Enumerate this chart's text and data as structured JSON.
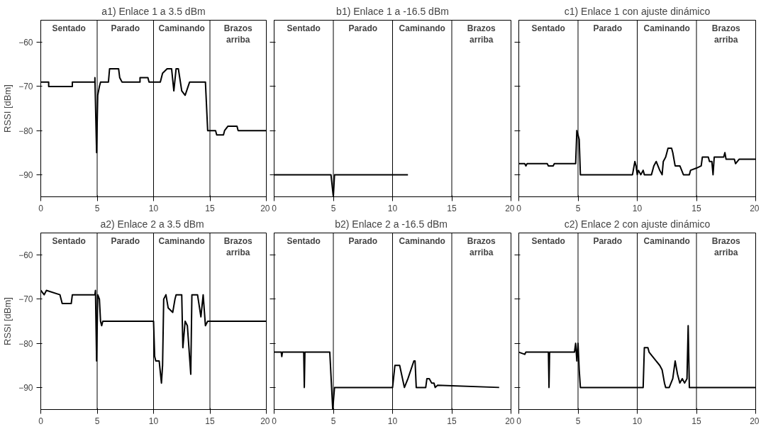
{
  "chart_data": [
    {
      "type": "line",
      "annotations": [
        "Sentado",
        "Parado",
        "Caminando",
        "Brazos arriba"
      ],
      "title": "a1) Enlace 1 a 3.5 dBm",
      "ylabel": "RSSI [dBm]",
      "xlim": [
        0,
        20
      ],
      "ylim": [
        -95,
        -55
      ],
      "xticks": [
        0,
        5,
        10,
        15,
        20
      ],
      "yticks": [
        -90,
        -80,
        -70,
        -60
      ],
      "grid": false,
      "ref_lines": [
        {
          "axis": "x",
          "value": 5,
          "color": "#000000"
        },
        {
          "axis": "x",
          "value": 10,
          "color": "#000000"
        },
        {
          "axis": "x",
          "value": 15,
          "color": "#000000"
        }
      ],
      "series": [
        {
          "color": "#000000",
          "x": [
            0,
            0.7,
            0.7,
            2.8,
            2.8,
            4.8,
            4.8,
            4.95,
            5.05,
            5.2,
            5.3,
            6.0,
            6.1,
            6.9,
            7.0,
            7.2,
            8.8,
            8.8,
            9.5,
            9.6,
            10.0,
            10.6,
            10.8,
            11.2,
            11.6,
            11.8,
            12.0,
            12.2,
            12.5,
            12.8,
            13.2,
            14.6,
            14.8,
            15.5,
            15.6,
            16.2,
            16.3,
            16.6,
            17.4,
            17.5,
            20
          ],
          "values": [
            -69,
            -69,
            -70,
            -70,
            -69,
            -69,
            -68,
            -85,
            -72,
            -70,
            -69,
            -69,
            -66,
            -66,
            -68,
            -69,
            -69,
            -68,
            -68,
            -69,
            -69,
            -69,
            -67,
            -66,
            -66,
            -71,
            -66,
            -66,
            -71,
            -72,
            -69,
            -69,
            -80,
            -80,
            -81,
            -81,
            -80,
            -79,
            -79,
            -80,
            -80
          ]
        }
      ]
    },
    {
      "type": "line",
      "annotations": [
        "Sentado",
        "Parado",
        "Caminando",
        "Brazos arriba"
      ],
      "title": "b1) Enlace 1 a -16.5 dBm",
      "xlim": [
        0,
        20
      ],
      "ylim": [
        -95,
        -55
      ],
      "xticks": [
        0,
        5,
        10,
        15,
        20
      ],
      "yticks": [
        -90,
        -80,
        -70,
        -60
      ],
      "grid": false,
      "tick_labels": "x",
      "ref_lines": [
        {
          "axis": "x",
          "value": 5,
          "color": "#000000"
        },
        {
          "axis": "x",
          "value": 10,
          "color": "#000000"
        },
        {
          "axis": "x",
          "value": 15,
          "color": "#000000"
        }
      ],
      "series": [
        {
          "color": "#000000",
          "x": [
            0,
            4.8,
            5.0,
            5.1,
            11.3
          ],
          "values": [
            -90,
            -90,
            -95,
            -90,
            -90
          ]
        }
      ]
    },
    {
      "type": "line",
      "annotations": [
        "Sentado",
        "Parado",
        "Caminando",
        "Brazos arriba"
      ],
      "title": "c1) Enlace 1 con ajuste dinámico",
      "xlim": [
        0,
        20
      ],
      "ylim": [
        -95,
        -55
      ],
      "xticks": [
        0,
        5,
        10,
        15,
        20
      ],
      "yticks": [
        -90,
        -80,
        -70,
        -60
      ],
      "grid": false,
      "tick_labels": "x",
      "ref_lines": [
        {
          "axis": "x",
          "value": 5,
          "color": "#000000"
        },
        {
          "axis": "x",
          "value": 10,
          "color": "#000000"
        },
        {
          "axis": "x",
          "value": 15,
          "color": "#000000"
        }
      ],
      "series": [
        {
          "color": "#000000",
          "x": [
            0,
            0.5,
            0.6,
            0.7,
            2.4,
            2.5,
            2.9,
            3.0,
            4.8,
            4.9,
            5.1,
            5.2,
            9.6,
            9.8,
            9.9,
            10.0,
            10.1,
            10.3,
            10.5,
            10.6,
            11.2,
            11.4,
            11.6,
            11.9,
            12.1,
            12.2,
            12.4,
            12.6,
            12.9,
            13.0,
            13.2,
            13.6,
            13.9,
            14.4,
            14.5,
            15.0,
            15.4,
            15.5,
            16.0,
            16.1,
            16.3,
            16.4,
            16.5,
            17.3,
            17.4,
            17.5,
            18.2,
            18.3,
            18.6,
            20
          ],
          "values": [
            -87.5,
            -87.5,
            -88,
            -87.5,
            -87.5,
            -88,
            -88,
            -87.5,
            -87.5,
            -80,
            -82,
            -90,
            -90,
            -87,
            -88,
            -90,
            -89,
            -90,
            -89,
            -90,
            -90,
            -88,
            -87,
            -89,
            -90,
            -87,
            -86,
            -84,
            -84,
            -85,
            -88,
            -88,
            -90,
            -90,
            -89,
            -88.5,
            -88,
            -86,
            -86,
            -87,
            -87,
            -90,
            -86,
            -86,
            -85,
            -86.5,
            -86.5,
            -87.5,
            -86.5,
            -86.5
          ]
        }
      ]
    },
    {
      "type": "line",
      "annotations": [
        "Sentado",
        "Parado",
        "Caminando",
        "Brazos arriba"
      ],
      "title": "a2)  Enlace 2 a 3.5 dBm",
      "ylabel": "RSSI [dBm]",
      "xlim": [
        0,
        20
      ],
      "ylim": [
        -95,
        -55
      ],
      "xticks": [
        0,
        5,
        10,
        15,
        20
      ],
      "yticks": [
        -90,
        -80,
        -70,
        -60
      ],
      "grid": false,
      "ref_lines": [
        {
          "axis": "x",
          "value": 5,
          "color": "#000000"
        },
        {
          "axis": "x",
          "value": 10,
          "color": "#000000"
        },
        {
          "axis": "x",
          "value": 15,
          "color": "#000000"
        }
      ],
      "series": [
        {
          "color": "#000000",
          "x": [
            0,
            0.3,
            0.5,
            1.7,
            1.9,
            2.7,
            2.8,
            4.8,
            4.85,
            4.95,
            5.05,
            5.2,
            5.3,
            5.4,
            5.5,
            10.0,
            10.1,
            10.2,
            10.5,
            10.7,
            10.8,
            10.9,
            11.1,
            11.3,
            11.7,
            11.9,
            12.0,
            12.5,
            12.6,
            12.8,
            13.0,
            13.3,
            13.4,
            13.9,
            14.2,
            14.4,
            14.6,
            14.8,
            20
          ],
          "values": [
            -68,
            -69,
            -68,
            -69,
            -71,
            -71,
            -69,
            -69,
            -68,
            -84,
            -69,
            -70,
            -75,
            -76,
            -75,
            -75,
            -83,
            -84,
            -84,
            -89,
            -85,
            -70,
            -69,
            -72,
            -73,
            -70,
            -69,
            -69,
            -81,
            -75,
            -76,
            -87,
            -69,
            -69,
            -74,
            -69,
            -76,
            -75,
            -75
          ]
        }
      ]
    },
    {
      "type": "line",
      "annotations": [
        "Sentado",
        "Parado",
        "Caminando",
        "Brazos arriba"
      ],
      "title": "b2)  Enlace 2 a -16.5 dBm",
      "xlim": [
        0,
        20
      ],
      "ylim": [
        -95,
        -55
      ],
      "xticks": [
        0,
        5,
        10,
        15,
        20
      ],
      "yticks": [
        -90,
        -80,
        -70,
        -60
      ],
      "grid": false,
      "tick_labels": "x",
      "ref_lines": [
        {
          "axis": "x",
          "value": 5,
          "color": "#000000"
        },
        {
          "axis": "x",
          "value": 10,
          "color": "#000000"
        },
        {
          "axis": "x",
          "value": 15,
          "color": "#000000"
        }
      ],
      "series": [
        {
          "color": "#000000",
          "x": [
            0,
            0.6,
            0.65,
            0.7,
            2.5,
            2.55,
            2.6,
            4.7,
            4.95,
            5.1,
            10.0,
            10.2,
            10.6,
            11.0,
            11.3,
            11.8,
            11.9,
            12.0,
            12.8,
            12.9,
            13.1,
            13.3,
            13.5,
            13.6,
            13.8,
            19.0
          ],
          "values": [
            -82,
            -82,
            -83,
            -82,
            -82,
            -90,
            -82,
            -82,
            -95,
            -90,
            -90,
            -85,
            -85,
            -90,
            -88,
            -84,
            -84,
            -90,
            -90,
            -88,
            -88,
            -89,
            -89,
            -90,
            -89.5,
            -90
          ]
        }
      ]
    },
    {
      "type": "line",
      "annotations": [
        "Sentado",
        "Parado",
        "Caminando",
        "Brazos arriba"
      ],
      "title": "c2) Enlace 2 con ajuste dinámico",
      "xlim": [
        0,
        20
      ],
      "ylim": [
        -95,
        -55
      ],
      "xticks": [
        0,
        5,
        10,
        15,
        20
      ],
      "yticks": [
        -90,
        -80,
        -70,
        -60
      ],
      "grid": false,
      "tick_labels": "x",
      "ref_lines": [
        {
          "axis": "x",
          "value": 5,
          "color": "#000000"
        },
        {
          "axis": "x",
          "value": 10,
          "color": "#000000"
        },
        {
          "axis": "x",
          "value": 15,
          "color": "#000000"
        }
      ],
      "series": [
        {
          "color": "#000000",
          "x": [
            0,
            0.5,
            0.6,
            2.5,
            2.55,
            2.6,
            4.7,
            4.8,
            4.9,
            5.0,
            5.1,
            5.2,
            10.5,
            10.6,
            10.9,
            11.0,
            11.3,
            11.6,
            11.9,
            12.1,
            12.3,
            12.4,
            12.7,
            13.0,
            13.2,
            13.4,
            13.6,
            13.8,
            14.0,
            14.2,
            14.3,
            14.4,
            20
          ],
          "values": [
            -82,
            -82.5,
            -82,
            -82,
            -90,
            -82,
            -82,
            -80,
            -84,
            -80,
            -86,
            -90,
            -90,
            -81,
            -81,
            -82,
            -83,
            -84,
            -85,
            -86,
            -89,
            -90,
            -90,
            -88,
            -84,
            -87,
            -89,
            -88,
            -89,
            -88,
            -76,
            -90,
            -90
          ]
        }
      ]
    }
  ]
}
